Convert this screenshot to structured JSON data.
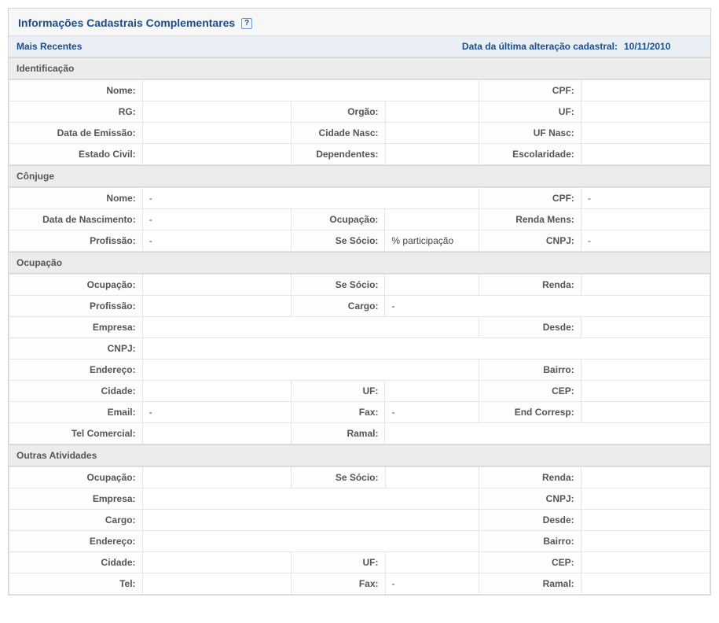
{
  "panel": {
    "title": "Informações Cadastrais Complementares",
    "help_icon": "?"
  },
  "subheader": {
    "left": "Mais Recentes",
    "right_label": "Data da última alteração cadastral:",
    "right_value": "10/11/2010"
  },
  "sections": {
    "identificacao": {
      "title": "Identificação",
      "nome_lbl": "Nome:",
      "nome_val": "",
      "cpf_lbl": "CPF:",
      "cpf_val": "",
      "rg_lbl": "RG:",
      "rg_val": "",
      "orgao_lbl": "Orgão:",
      "orgao_val": "",
      "uf_lbl": "UF:",
      "uf_val": "",
      "dataemissao_lbl": "Data de Emissão:",
      "dataemissao_val": "",
      "cidadenasc_lbl": "Cidade Nasc:",
      "cidadenasc_val": "",
      "ufnasc_lbl": "UF Nasc:",
      "ufnasc_val": "",
      "estadocivil_lbl": "Estado Civil:",
      "estadocivil_val": "",
      "dependentes_lbl": "Dependentes:",
      "dependentes_val": "",
      "escolaridade_lbl": "Escolaridade:",
      "escolaridade_val": ""
    },
    "conjuge": {
      "title": "Cônjuge",
      "nome_lbl": "Nome:",
      "nome_val": "-",
      "cpf_lbl": "CPF:",
      "cpf_val": "-",
      "datanasc_lbl": "Data de Nascimento:",
      "datanasc_val": "-",
      "ocupacao_lbl": "Ocupação:",
      "ocupacao_val": "",
      "rendamens_lbl": "Renda Mens:",
      "rendamens_val": "",
      "profissao_lbl": "Profissão:",
      "profissao_val": "-",
      "sesocio_lbl": "Se Sócio:",
      "sesocio_val": "% participação",
      "cnpj_lbl": "CNPJ:",
      "cnpj_val": "-"
    },
    "ocupacao": {
      "title": "Ocupação",
      "ocupacao_lbl": "Ocupação:",
      "ocupacao_val": "",
      "sesocio_lbl": "Se Sócio:",
      "sesocio_val": "",
      "renda_lbl": "Renda:",
      "renda_val": "",
      "profissao_lbl": "Profissão:",
      "profissao_val": "",
      "cargo_lbl": "Cargo:",
      "cargo_val": "-",
      "empresa_lbl": "Empresa:",
      "empresa_val": "",
      "desde_lbl": "Desde:",
      "desde_val": "",
      "cnpj_lbl": "CNPJ:",
      "cnpj_val": "",
      "endereco_lbl": "Endereço:",
      "endereco_val": "",
      "bairro_lbl": "Bairro:",
      "bairro_val": "",
      "cidade_lbl": "Cidade:",
      "cidade_val": "",
      "uf_lbl": "UF:",
      "uf_val": "",
      "cep_lbl": "CEP:",
      "cep_val": "",
      "email_lbl": "Email:",
      "email_val": "-",
      "fax_lbl": "Fax:",
      "fax_val": "-",
      "endcorresp_lbl": "End Corresp:",
      "endcorresp_val": "",
      "telcom_lbl": "Tel Comercial:",
      "telcom_val": "",
      "ramal_lbl": "Ramal:",
      "ramal_val": ""
    },
    "outras": {
      "title": "Outras Atividades",
      "ocupacao_lbl": "Ocupação:",
      "ocupacao_val": "",
      "sesocio_lbl": "Se Sócio:",
      "sesocio_val": "",
      "renda_lbl": "Renda:",
      "renda_val": "",
      "empresa_lbl": "Empresa:",
      "empresa_val": "",
      "cnpj_lbl": "CNPJ:",
      "cnpj_val": "",
      "cargo_lbl": "Cargo:",
      "cargo_val": "",
      "desde_lbl": "Desde:",
      "desde_val": "",
      "endereco_lbl": "Endereço:",
      "endereco_val": "",
      "bairro_lbl": "Bairro:",
      "bairro_val": "",
      "cidade_lbl": "Cidade:",
      "cidade_val": "",
      "uf_lbl": "UF:",
      "uf_val": "",
      "cep_lbl": "CEP:",
      "cep_val": "",
      "tel_lbl": "Tel:",
      "tel_val": "",
      "fax_lbl": "Fax:",
      "fax_val": "-",
      "ramal_lbl": "Ramal:",
      "ramal_val": ""
    }
  }
}
